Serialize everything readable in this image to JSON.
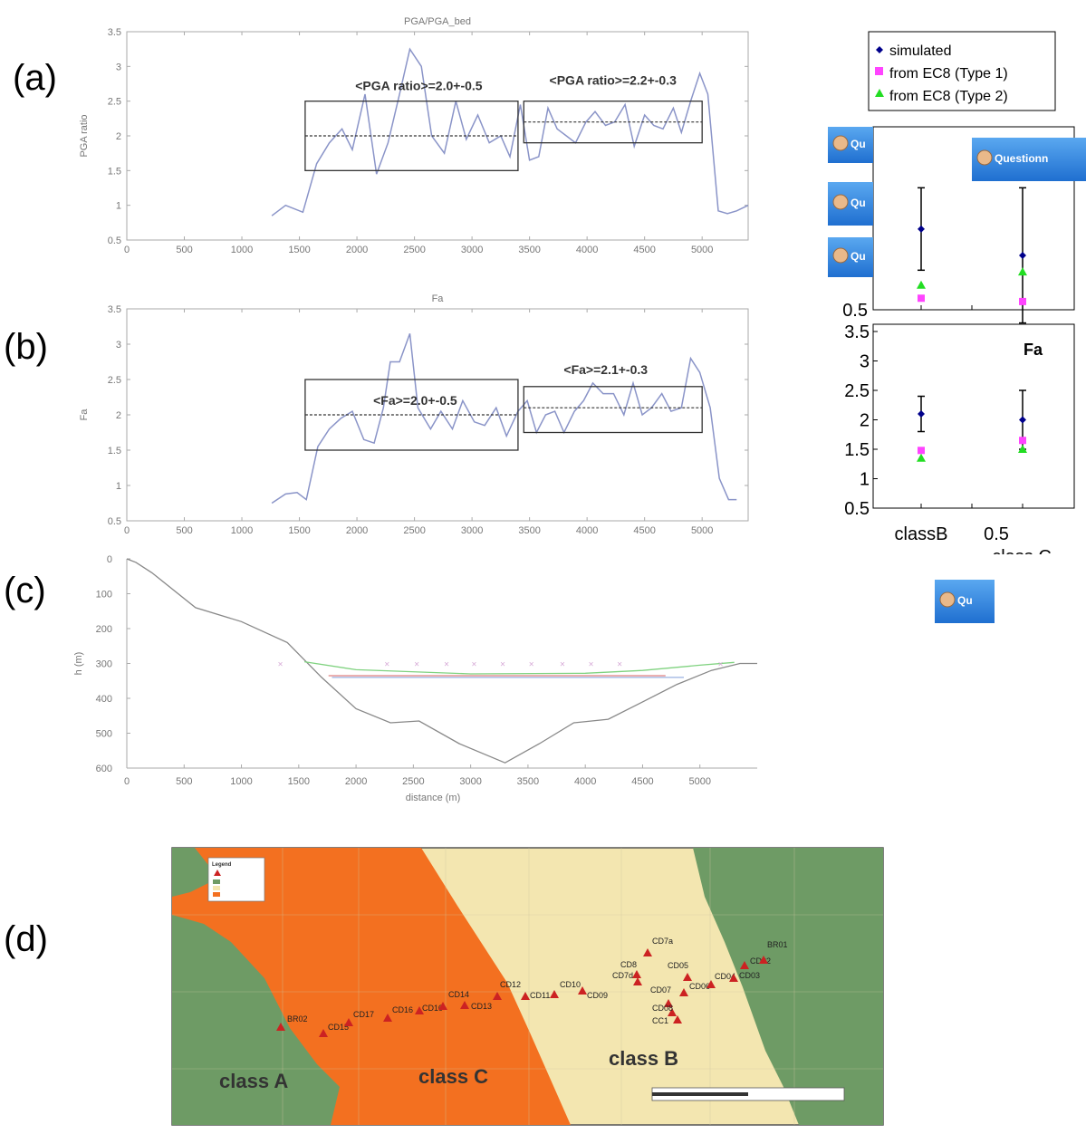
{
  "panel_labels": [
    "(a)",
    "(b)",
    "(c)",
    "(d)"
  ],
  "chart_data": [
    {
      "id": "a",
      "type": "line",
      "title": "PGA/PGA_bed",
      "ylabel": "PGA ratio",
      "xlim": [
        0,
        5400
      ],
      "ylim": [
        0.5,
        3.5
      ],
      "xticks": [
        0,
        500,
        1000,
        1500,
        2000,
        2500,
        3000,
        3500,
        4000,
        4500,
        5000
      ],
      "yticks": [
        0.5,
        1,
        1.5,
        2,
        2.5,
        3,
        3.5
      ],
      "series": [
        {
          "color": "#8a94c8",
          "x": [
            1260,
            1380,
            1530,
            1650,
            1760,
            1870,
            1960,
            2070,
            2170,
            2270,
            2370,
            2460,
            2560,
            2650,
            2760,
            2860,
            2950,
            3050,
            3150,
            3250,
            3330,
            3420,
            3500,
            3580,
            3660,
            3740,
            3820,
            3900,
            3990,
            4070,
            4160,
            4240,
            4330,
            4410,
            4500,
            4580,
            4660,
            4750,
            4820,
            4900,
            4980,
            5050,
            5140,
            5220,
            5300,
            5400
          ],
          "y": [
            0.85,
            1.0,
            0.9,
            1.6,
            1.9,
            2.1,
            1.8,
            2.6,
            1.45,
            1.9,
            2.6,
            3.25,
            3.0,
            2.0,
            1.75,
            2.5,
            1.95,
            2.3,
            1.9,
            2.0,
            1.7,
            2.45,
            1.65,
            1.7,
            2.4,
            2.1,
            2.0,
            1.9,
            2.2,
            2.35,
            2.15,
            2.2,
            2.45,
            1.85,
            2.3,
            2.15,
            2.1,
            2.4,
            2.05,
            2.5,
            2.9,
            2.6,
            0.92,
            0.88,
            0.92,
            1.0
          ]
        }
      ],
      "boxes": [
        {
          "x": [
            1550,
            3400
          ],
          "y": [
            1.5,
            2.5
          ],
          "mean": 2.0,
          "label": "<PGA ratio>=2.0+-0.5"
        },
        {
          "x": [
            3450,
            5000
          ],
          "y": [
            1.9,
            2.5
          ],
          "mean": 2.2,
          "label": "<PGA ratio>=2.2+-0.3"
        }
      ]
    },
    {
      "id": "b",
      "type": "line",
      "title": "Fa",
      "ylabel": "Fa",
      "xlim": [
        0,
        5400
      ],
      "ylim": [
        0.5,
        3.5
      ],
      "xticks": [
        0,
        500,
        1000,
        1500,
        2000,
        2500,
        3000,
        3500,
        4000,
        4500,
        5000
      ],
      "yticks": [
        0.5,
        1,
        1.5,
        2,
        2.5,
        3,
        3.5
      ],
      "series": [
        {
          "color": "#8a94c8",
          "x": [
            1260,
            1380,
            1480,
            1560,
            1660,
            1760,
            1860,
            1960,
            2060,
            2150,
            2230,
            2290,
            2370,
            2460,
            2530,
            2640,
            2730,
            2830,
            2920,
            3020,
            3110,
            3210,
            3300,
            3400,
            3480,
            3560,
            3640,
            3720,
            3800,
            3890,
            3970,
            4050,
            4140,
            4230,
            4320,
            4400,
            4480,
            4560,
            4650,
            4730,
            4820,
            4900,
            4980,
            5070,
            5150,
            5230,
            5300
          ],
          "y": [
            0.75,
            0.88,
            0.9,
            0.8,
            1.55,
            1.8,
            1.95,
            2.05,
            1.65,
            1.6,
            2.1,
            2.75,
            2.75,
            3.15,
            2.1,
            1.8,
            2.05,
            1.8,
            2.2,
            1.9,
            1.85,
            2.1,
            1.7,
            2.05,
            2.2,
            1.75,
            2.0,
            2.05,
            1.75,
            2.05,
            2.2,
            2.45,
            2.3,
            2.3,
            2.0,
            2.45,
            2.0,
            2.1,
            2.3,
            2.05,
            2.1,
            2.8,
            2.6,
            2.1,
            1.1,
            0.8,
            0.8
          ]
        }
      ],
      "boxes": [
        {
          "x": [
            1550,
            3400
          ],
          "y": [
            1.5,
            2.5
          ],
          "mean": 2.0,
          "label": "<Fa>=2.0+-0.5"
        },
        {
          "x": [
            3450,
            5000
          ],
          "y": [
            1.75,
            2.4
          ],
          "mean": 2.1,
          "label": "<Fa>=2.1+-0.3"
        }
      ]
    },
    {
      "id": "c",
      "type": "line",
      "xlabel": "distance (m)",
      "ylabel": "h (m)",
      "xlim": [
        0,
        5500
      ],
      "ylim": [
        600,
        0
      ],
      "xticks": [
        0,
        500,
        1000,
        1500,
        2000,
        2500,
        3000,
        3500,
        4000,
        4500,
        5000
      ],
      "yticks": [
        0,
        100,
        200,
        300,
        400,
        500,
        600
      ],
      "profile": {
        "color": "#888888",
        "x": [
          0,
          80,
          220,
          600,
          1000,
          1400,
          1700,
          2000,
          2300,
          2550,
          2900,
          3300,
          3600,
          3900,
          4200,
          4500,
          4800,
          5100,
          5350,
          5500
        ],
        "y": [
          0,
          10,
          40,
          140,
          180,
          240,
          340,
          430,
          470,
          465,
          530,
          585,
          530,
          470,
          460,
          410,
          360,
          320,
          300,
          300
        ]
      },
      "layers": [
        {
          "color": "#7fd27f",
          "x": [
            1550,
            2000,
            3000,
            4000,
            4500,
            5000,
            5300
          ],
          "y": [
            295,
            318,
            330,
            328,
            320,
            305,
            297
          ]
        },
        {
          "color": "#e08080",
          "x": [
            1760,
            4700
          ],
          "y": [
            335,
            335
          ]
        },
        {
          "color": "#9ab0e0",
          "x": [
            1790,
            4860
          ],
          "y": [
            340,
            340
          ]
        }
      ],
      "markers": {
        "color": "#d6a8d6",
        "x": [
          1340,
          2270,
          2530,
          2790,
          3030,
          3280,
          3530,
          3800,
          4050,
          4300,
          5180
        ],
        "y": [
          300,
          300,
          300,
          300,
          300,
          300,
          300,
          300,
          300,
          300,
          300
        ]
      }
    },
    {
      "id": "right-top",
      "type": "scatter",
      "yticks_shown": [
        0.5
      ],
      "legend": [
        "simulated",
        "from EC8 (Type 1)",
        "from EC8 (Type 2)"
      ],
      "colors": {
        "simulated": "#00008b",
        "type1": "#ff44ff",
        "type2": "#22dd22"
      },
      "points": [
        {
          "cat": 1,
          "sim": 0.99,
          "err_hi": 1.24,
          "err_lo": 0.74,
          "t1": 0.57,
          "t2": 0.65
        },
        {
          "cat": 2,
          "sim": 0.83,
          "err_hi": 1.24,
          "err_lo": 0.42,
          "t1": 0.55,
          "t2": 0.73
        }
      ],
      "ylim": [
        0.5,
        1.5
      ]
    },
    {
      "id": "right-bottom",
      "type": "scatter",
      "title": "Fa",
      "ylim": [
        0.5,
        3.5
      ],
      "yticks": [
        "3.5",
        "3",
        "2.5",
        "2",
        "1.5",
        "1",
        "0.5"
      ],
      "xticklabels": [
        "classB",
        "0.5"
      ],
      "xticklabel_partial": "class C",
      "points": [
        {
          "cat": 1,
          "sim": 2.1,
          "err_hi": 2.4,
          "err_lo": 1.8,
          "t1": 1.48,
          "t2": 1.35
        },
        {
          "cat": 2,
          "sim": 2.0,
          "err_hi": 2.5,
          "err_lo": 1.5,
          "t1": 1.65,
          "t2": 1.5
        }
      ]
    }
  ],
  "overlay_buttons": [
    "Qu",
    "Questionn",
    "Qu",
    "Qu",
    "Qu"
  ],
  "map": {
    "colors": {
      "classA": "#6e9b65",
      "classB": "#f3e6b0",
      "classC": "#f37020",
      "station": "#cc2222"
    },
    "class_labels": [
      "class A",
      "class C",
      "class B"
    ],
    "legend_title": "Legend",
    "stations": [
      {
        "name": "BR02"
      },
      {
        "name": "CD15"
      },
      {
        "name": "CD17"
      },
      {
        "name": "CD16"
      },
      {
        "name": "CD10"
      },
      {
        "name": "CD14"
      },
      {
        "name": "CD13"
      },
      {
        "name": "CD12"
      },
      {
        "name": "CD11"
      },
      {
        "name": "CD10"
      },
      {
        "name": "CD09"
      },
      {
        "name": "CD8"
      },
      {
        "name": "CD7a"
      },
      {
        "name": "CD7d"
      },
      {
        "name": "CD05"
      },
      {
        "name": "CD06"
      },
      {
        "name": "CD07"
      },
      {
        "name": "CD08"
      },
      {
        "name": "CC1"
      },
      {
        "name": "CD04"
      },
      {
        "name": "CD03"
      },
      {
        "name": "CD02"
      },
      {
        "name": "BR01"
      }
    ]
  }
}
